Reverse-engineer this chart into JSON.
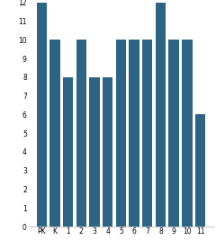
{
  "categories": [
    "PK",
    "K",
    "1",
    "2",
    "3",
    "4",
    "5",
    "6",
    "7",
    "8",
    "9",
    "10",
    "11"
  ],
  "values": [
    12,
    10,
    8,
    10,
    8,
    8,
    10,
    10,
    10,
    12,
    10,
    10,
    6
  ],
  "bar_color": "#2e6483",
  "ylim": [
    0,
    12
  ],
  "yticks": [
    0,
    1,
    2,
    3,
    4,
    5,
    6,
    7,
    8,
    9,
    10,
    11,
    12
  ],
  "xlabel": "",
  "ylabel": "",
  "title": "",
  "tick_fontsize": 5.5,
  "background_color": "#ffffff"
}
